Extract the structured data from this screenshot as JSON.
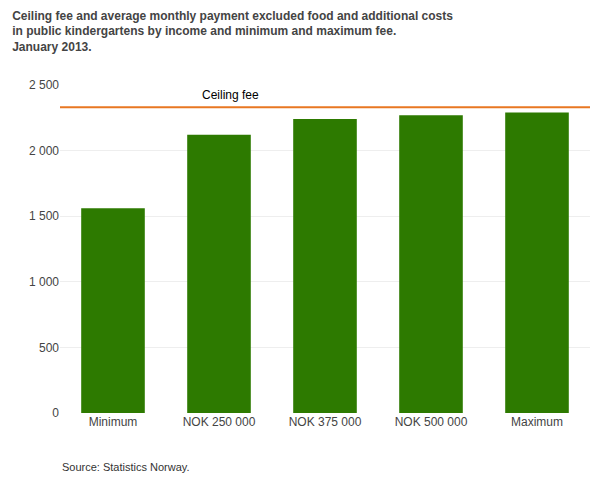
{
  "chart_data": {
    "type": "bar",
    "title": "Ceiling fee and average monthly payment excluded food and additional costs\nin public kindergartens by income and minimum and maximum fee.\nJanuary 2013.",
    "categories": [
      "Minimum",
      "NOK 250 000",
      "NOK 375 000",
      "NOK 500 000",
      "Maximum"
    ],
    "values": [
      1560,
      2120,
      2240,
      2270,
      2290
    ],
    "color": "#2d7a00",
    "lines": [
      {
        "value": 2330,
        "label": "Ceiling fee",
        "color": "#e87722"
      }
    ],
    "source": "Source: Statistics Norway.",
    "ylim": [
      0,
      2500
    ],
    "yticks": [
      0,
      500,
      {
        "value": 1000,
        "label": "1 000"
      },
      {
        "value": 1500,
        "label": "1 500"
      },
      {
        "value": 2000,
        "label": "2 000"
      },
      {
        "value": 2500,
        "label": "2 500"
      }
    ],
    "grid": true
  }
}
